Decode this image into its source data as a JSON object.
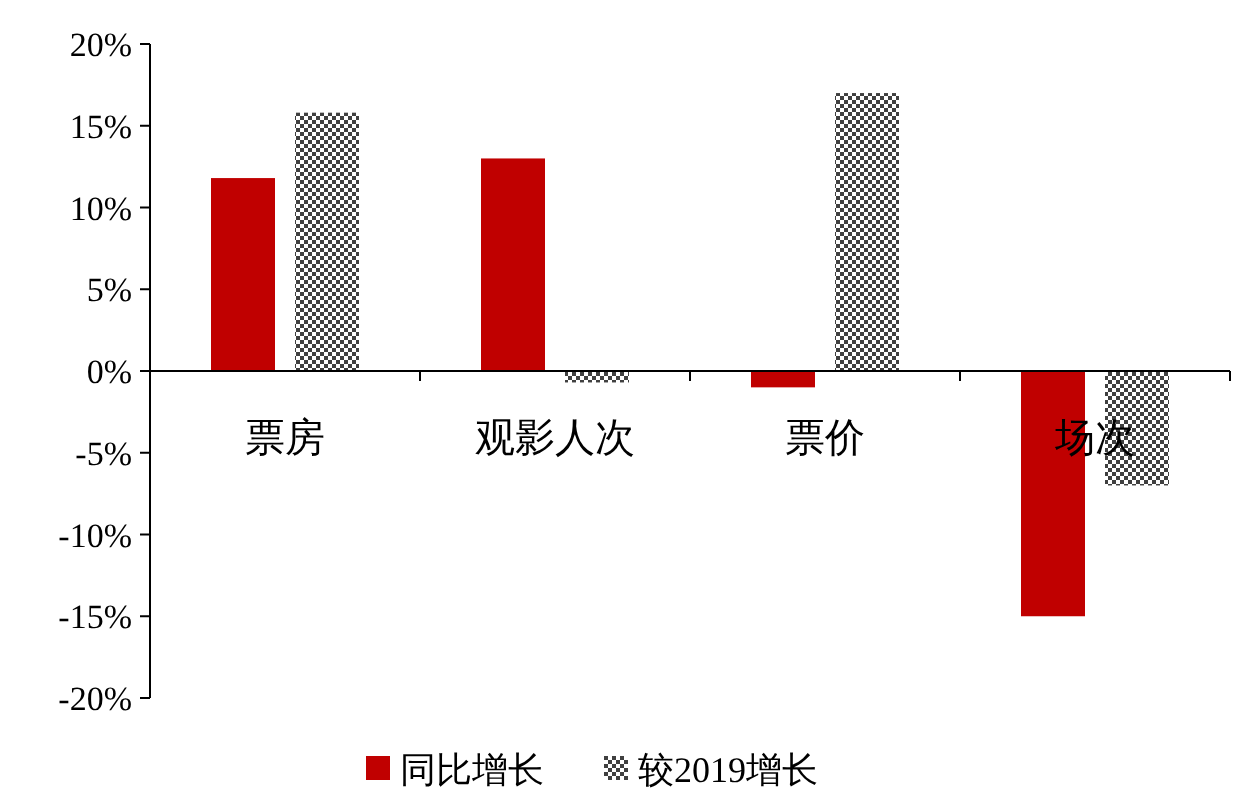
{
  "chart_data": {
    "type": "bar",
    "categories": [
      "票房",
      "观影人次",
      "票价",
      "场次"
    ],
    "series": [
      {
        "name": "同比增长",
        "color": "#c00000",
        "values": [
          11.8,
          13.0,
          -1.0,
          -15.0
        ]
      },
      {
        "name": "较2019增长",
        "color": "#404040",
        "values": [
          15.8,
          -0.7,
          17.0,
          -7.0
        ]
      }
    ],
    "ylim": [
      -20,
      20
    ],
    "yticks": [
      {
        "value": -20,
        "label": "-20%"
      },
      {
        "value": -15,
        "label": "-15%"
      },
      {
        "value": -10,
        "label": "-10%"
      },
      {
        "value": -5,
        "label": "-5%"
      },
      {
        "value": 0,
        "label": "0%"
      },
      {
        "value": 5,
        "label": "5%"
      },
      {
        "value": 10,
        "label": "10%"
      },
      {
        "value": 15,
        "label": "15%"
      },
      {
        "value": 20,
        "label": "20%"
      }
    ],
    "grid": false,
    "legend": "bottom"
  }
}
